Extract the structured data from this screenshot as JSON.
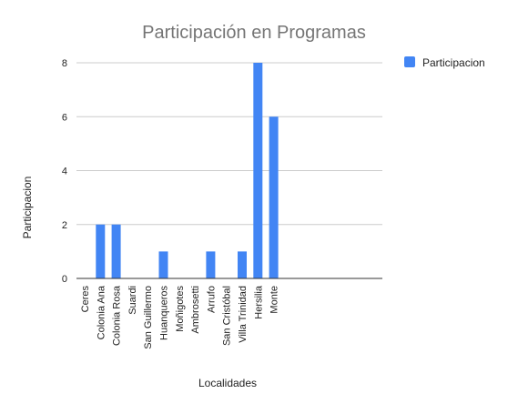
{
  "chart_data": {
    "type": "bar",
    "title": "Participación en Programas",
    "xlabel": "Localidades",
    "ylabel": "Participacion",
    "categories": [
      "Ceres",
      "Colonia Ana",
      "Colonia Rosa",
      "Suardi",
      "San Guillermo",
      "Huanqueros",
      "Moñigotes",
      "Ambrosetti",
      "Arrufo",
      "San Cristóbal",
      "Villa Trinidad",
      "Hersilia",
      "Monte"
    ],
    "series": [
      {
        "name": "Participacion",
        "values": [
          0,
          2,
          2,
          0,
          0,
          1,
          0,
          0,
          1,
          0,
          1,
          8,
          6
        ],
        "color": "#4285f4"
      }
    ],
    "ylim": [
      0,
      8
    ],
    "yticks": [
      0,
      2,
      4,
      6,
      8
    ],
    "grid": true,
    "legend": "right"
  }
}
